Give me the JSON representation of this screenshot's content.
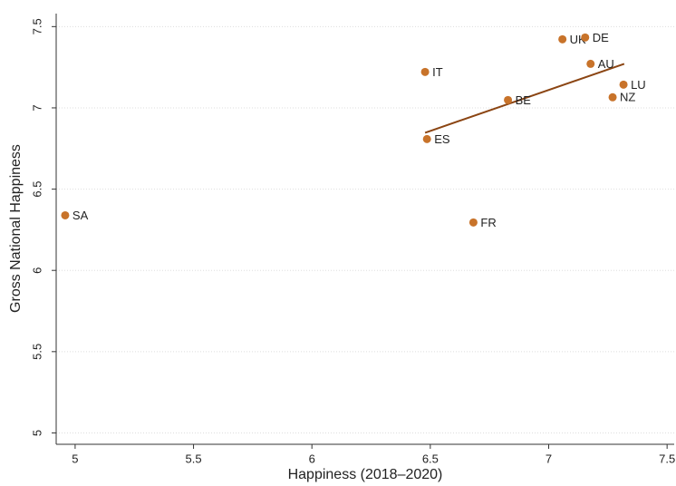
{
  "chart_data": {
    "type": "scatter",
    "x_label": "Happiness (2018–2020)",
    "y_label": "Gross National Happiness",
    "categories": [
      "SA",
      "IT",
      "ES",
      "FR",
      "BE",
      "UK",
      "DE",
      "AU",
      "LU",
      "NZ"
    ],
    "x": [
      4.958,
      6.478,
      6.486,
      6.682,
      6.828,
      7.058,
      7.154,
      7.177,
      7.316,
      7.27
    ],
    "values": [
      6.339,
      7.221,
      6.808,
      6.295,
      7.048,
      7.422,
      7.433,
      7.271,
      7.143,
      7.065
    ],
    "color": "#c8732a",
    "fit_line": {
      "x": [
        6.478,
        7.319
      ],
      "values": [
        6.847,
        7.271
      ],
      "color": "#8b4513"
    },
    "xlim": [
      4.92,
      7.53
    ],
    "ylim": [
      4.93,
      7.58
    ],
    "xticks": [
      5,
      5.5,
      6,
      6.5,
      7,
      7.5
    ],
    "yticks": [
      5,
      5.5,
      6,
      6.5,
      7,
      7.5
    ],
    "grid": true
  }
}
